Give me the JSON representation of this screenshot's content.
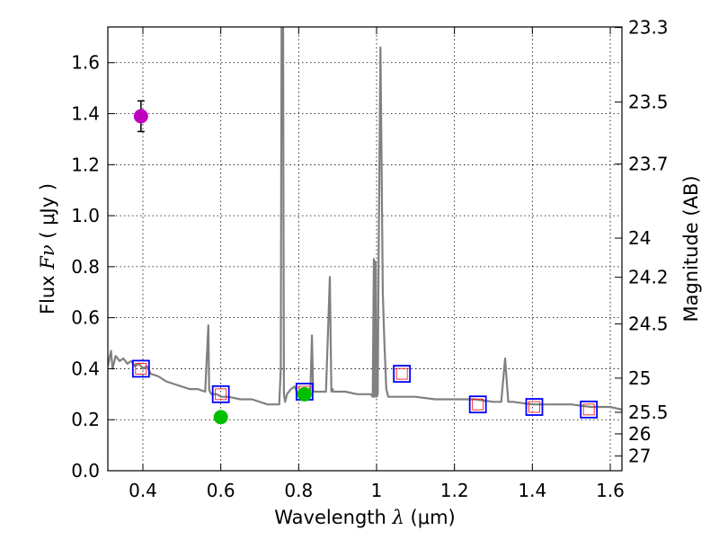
{
  "chart_data": {
    "type": "scatter",
    "xlabel_text": "Wavelength",
    "xlabel_symbol": "λ",
    "xlabel_unit": "(μm)",
    "ylabel_text": "Flux",
    "ylabel_symbol": "Fν",
    "ylabel_unit": "( μJy )",
    "y2label": "Magnitude (AB)",
    "xlim": [
      0.31,
      1.63
    ],
    "ylim": [
      0.0,
      1.74
    ],
    "grid": true,
    "x_ticks": [
      "0.4",
      "0.6",
      "0.8",
      "1",
      "1.2",
      "1.4",
      "1.6"
    ],
    "y_ticks": [
      "0.0",
      "0.2",
      "0.4",
      "0.6",
      "0.8",
      "1.0",
      "1.2",
      "1.4",
      "1.6"
    ],
    "mag_ticks": [
      "23.3",
      "23.5",
      "23.7",
      "24",
      "24.2",
      "24.5",
      "25",
      "25.5",
      "26",
      "27"
    ],
    "colors": {
      "template": "#808080",
      "model": "#0000ff",
      "model_inner": "#ff0000",
      "uv_point": "#bf00bf",
      "photometry": "#00bf00"
    },
    "series": [
      {
        "name": "template spectrum",
        "kind": "line",
        "x": [
          0.31,
          0.318,
          0.322,
          0.33,
          0.34,
          0.35,
          0.36,
          0.37,
          0.38,
          0.39,
          0.4,
          0.41,
          0.42,
          0.44,
          0.46,
          0.48,
          0.5,
          0.52,
          0.54,
          0.56,
          0.568,
          0.57,
          0.572,
          0.576,
          0.59,
          0.6,
          0.62,
          0.65,
          0.68,
          0.7,
          0.72,
          0.74,
          0.75,
          0.754,
          0.756,
          0.76,
          0.762,
          0.765,
          0.77,
          0.78,
          0.79,
          0.8,
          0.81,
          0.82,
          0.83,
          0.834,
          0.837,
          0.84,
          0.85,
          0.87,
          0.88,
          0.884,
          0.887,
          0.89,
          0.9,
          0.92,
          0.95,
          0.97,
          0.985,
          0.99,
          0.993,
          0.995,
          0.998,
          1.0,
          1.003,
          1.005,
          1.01,
          1.013,
          1.016,
          1.02,
          1.025,
          1.03,
          1.05,
          1.1,
          1.15,
          1.2,
          1.25,
          1.3,
          1.32,
          1.33,
          1.338,
          1.35,
          1.4,
          1.45,
          1.5,
          1.55,
          1.6,
          1.63
        ],
        "y": [
          0.41,
          0.47,
          0.4,
          0.45,
          0.43,
          0.44,
          0.42,
          0.43,
          0.41,
          0.42,
          0.4,
          0.41,
          0.38,
          0.37,
          0.35,
          0.34,
          0.33,
          0.32,
          0.32,
          0.31,
          0.57,
          0.32,
          0.31,
          0.3,
          0.3,
          0.29,
          0.29,
          0.28,
          0.28,
          0.27,
          0.26,
          0.26,
          0.26,
          0.4,
          1.74,
          1.74,
          0.3,
          0.27,
          0.3,
          0.32,
          0.33,
          0.29,
          0.3,
          0.32,
          0.31,
          0.53,
          0.31,
          0.31,
          0.31,
          0.31,
          0.76,
          0.31,
          0.32,
          0.31,
          0.31,
          0.31,
          0.3,
          0.3,
          0.3,
          0.29,
          0.83,
          0.29,
          0.82,
          0.29,
          0.3,
          0.8,
          1.66,
          1.2,
          0.7,
          0.5,
          0.32,
          0.29,
          0.29,
          0.29,
          0.28,
          0.28,
          0.28,
          0.27,
          0.27,
          0.44,
          0.27,
          0.27,
          0.26,
          0.26,
          0.26,
          0.25,
          0.25,
          0.24
        ]
      },
      {
        "name": "model bandpass points",
        "kind": "open-square",
        "x": [
          0.395,
          0.6,
          0.815,
          1.065,
          1.26,
          1.405,
          1.545
        ],
        "y": [
          0.4,
          0.3,
          0.31,
          0.38,
          0.26,
          0.25,
          0.24
        ]
      },
      {
        "name": "UV detection",
        "kind": "filled-circle",
        "x": [
          0.395
        ],
        "y": [
          1.39
        ],
        "yerr": [
          0.06
        ]
      },
      {
        "name": "optical detections",
        "kind": "filled-circle",
        "x": [
          0.6,
          0.815
        ],
        "y": [
          0.21,
          0.3
        ],
        "yerr": [
          0.02,
          0.02
        ]
      }
    ]
  }
}
